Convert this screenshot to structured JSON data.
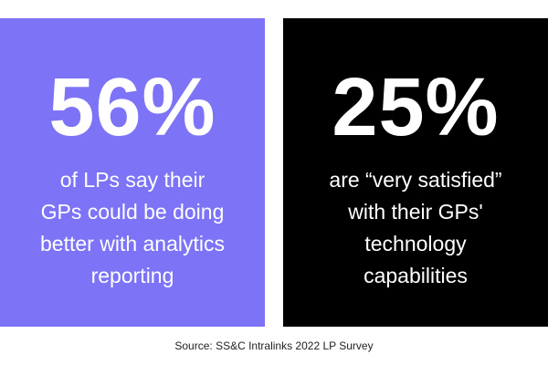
{
  "colors": {
    "left_panel_bg": "#7c73f7",
    "right_panel_bg": "#000000",
    "text": "#ffffff",
    "source_text": "#222222"
  },
  "chart_data": {
    "type": "table",
    "stats": [
      {
        "value": "56%",
        "lines": [
          "of LPs say their",
          "GPs could be doing",
          "better with analytics",
          "reporting"
        ]
      },
      {
        "value": "25%",
        "lines": [
          "are “very satisfied”",
          "with their GPs'",
          "technology",
          "capabilities"
        ]
      }
    ],
    "source": "Source: SS&C Intralinks 2022 LP Survey"
  }
}
